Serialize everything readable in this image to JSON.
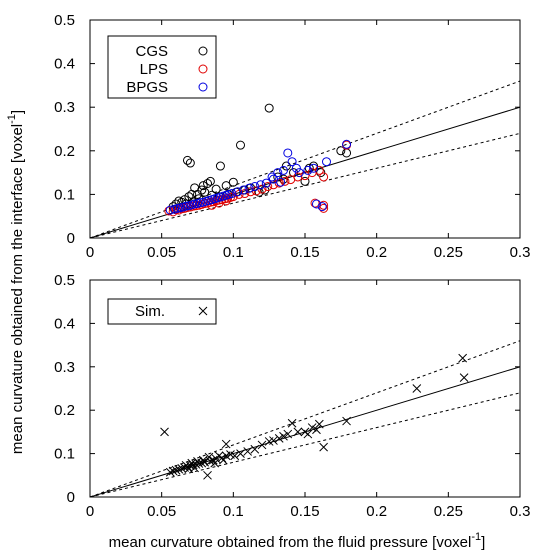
{
  "figure": {
    "ylabel": "mean curvature obtained from the interface [voxel",
    "ylabel_sup": "-1",
    "ylabel_end": "]",
    "xlabel": "mean curvature obtained from the fluid pressure [voxel",
    "xlabel_sup": "-1",
    "xlabel_end": "]"
  },
  "chart_data": [
    {
      "type": "scatter",
      "xlim": [
        0,
        0.3
      ],
      "ylim": [
        0,
        0.5
      ],
      "xticks": [
        "0",
        "0.05",
        "0.1",
        "0.15",
        "0.2",
        "0.25",
        "0.3"
      ],
      "yticks": [
        "0",
        "0.1",
        "0.2",
        "0.3",
        "0.4",
        "0.5"
      ],
      "legend_position": "top-left",
      "reference_lines": [
        {
          "style": "solid",
          "slope": 1.0
        },
        {
          "style": "dashed",
          "slope": 1.2
        },
        {
          "style": "dashed",
          "slope": 0.8
        }
      ],
      "series": [
        {
          "name": "CGS",
          "marker": "circle",
          "color": "#000000",
          "points": [
            [
              0.125,
              0.298
            ],
            [
              0.105,
              0.213
            ],
            [
              0.068,
              0.178
            ],
            [
              0.07,
              0.172
            ],
            [
              0.084,
              0.13
            ],
            [
              0.091,
              0.165
            ],
            [
              0.078,
              0.11
            ],
            [
              0.079,
              0.12
            ],
            [
              0.082,
              0.125
            ],
            [
              0.073,
              0.115
            ],
            [
              0.075,
              0.1
            ],
            [
              0.071,
              0.1
            ],
            [
              0.069,
              0.095
            ],
            [
              0.066,
              0.088
            ],
            [
              0.064,
              0.082
            ],
            [
              0.06,
              0.078
            ],
            [
              0.058,
              0.072
            ],
            [
              0.062,
              0.085
            ],
            [
              0.08,
              0.105
            ],
            [
              0.088,
              0.112
            ],
            [
              0.095,
              0.12
            ],
            [
              0.1,
              0.128
            ],
            [
              0.108,
              0.11
            ],
            [
              0.112,
              0.115
            ],
            [
              0.118,
              0.105
            ],
            [
              0.122,
              0.11
            ],
            [
              0.131,
              0.14
            ],
            [
              0.135,
              0.135
            ],
            [
              0.137,
              0.165
            ],
            [
              0.142,
              0.15
            ],
            [
              0.15,
              0.13
            ],
            [
              0.153,
              0.16
            ],
            [
              0.156,
              0.165
            ],
            [
              0.161,
              0.15
            ],
            [
              0.175,
              0.2
            ],
            [
              0.179,
              0.195
            ],
            [
              0.09,
              0.095
            ],
            [
              0.096,
              0.1
            ],
            [
              0.102,
              0.105
            ],
            [
              0.085,
              0.098
            ],
            [
              0.076,
              0.09
            ],
            [
              0.072,
              0.083
            ],
            [
              0.067,
              0.078
            ],
            [
              0.063,
              0.07
            ],
            [
              0.059,
              0.066
            ]
          ]
        },
        {
          "name": "LPS",
          "marker": "circle",
          "color": "#e00000",
          "points": [
            [
              0.055,
              0.062
            ],
            [
              0.058,
              0.06
            ],
            [
              0.06,
              0.065
            ],
            [
              0.062,
              0.064
            ],
            [
              0.064,
              0.067
            ],
            [
              0.066,
              0.068
            ],
            [
              0.068,
              0.07
            ],
            [
              0.07,
              0.071
            ],
            [
              0.072,
              0.073
            ],
            [
              0.074,
              0.074
            ],
            [
              0.076,
              0.075
            ],
            [
              0.078,
              0.077
            ],
            [
              0.08,
              0.079
            ],
            [
              0.082,
              0.08
            ],
            [
              0.084,
              0.082
            ],
            [
              0.086,
              0.083
            ],
            [
              0.088,
              0.085
            ],
            [
              0.09,
              0.087
            ],
            [
              0.092,
              0.088
            ],
            [
              0.094,
              0.09
            ],
            [
              0.096,
              0.091
            ],
            [
              0.098,
              0.093
            ],
            [
              0.1,
              0.095
            ],
            [
              0.104,
              0.1
            ],
            [
              0.108,
              0.102
            ],
            [
              0.112,
              0.106
            ],
            [
              0.116,
              0.108
            ],
            [
              0.12,
              0.112
            ],
            [
              0.124,
              0.118
            ],
            [
              0.128,
              0.122
            ],
            [
              0.132,
              0.126
            ],
            [
              0.136,
              0.13
            ],
            [
              0.14,
              0.134
            ],
            [
              0.145,
              0.14
            ],
            [
              0.15,
              0.143
            ],
            [
              0.155,
              0.15
            ],
            [
              0.16,
              0.155
            ],
            [
              0.163,
              0.14
            ],
            [
              0.157,
              0.08
            ],
            [
              0.163,
              0.075
            ],
            [
              0.163,
              0.068
            ],
            [
              0.179,
              0.213
            ],
            [
              0.09,
              0.08
            ],
            [
              0.095,
              0.085
            ],
            [
              0.085,
              0.075
            ]
          ]
        },
        {
          "name": "BPGS",
          "marker": "circle",
          "color": "#0000e0",
          "points": [
            [
              0.056,
              0.064
            ],
            [
              0.059,
              0.066
            ],
            [
              0.061,
              0.068
            ],
            [
              0.063,
              0.069
            ],
            [
              0.065,
              0.071
            ],
            [
              0.067,
              0.073
            ],
            [
              0.069,
              0.074
            ],
            [
              0.071,
              0.076
            ],
            [
              0.073,
              0.078
            ],
            [
              0.075,
              0.079
            ],
            [
              0.077,
              0.081
            ],
            [
              0.079,
              0.082
            ],
            [
              0.081,
              0.084
            ],
            [
              0.083,
              0.086
            ],
            [
              0.085,
              0.088
            ],
            [
              0.087,
              0.09
            ],
            [
              0.089,
              0.092
            ],
            [
              0.091,
              0.094
            ],
            [
              0.093,
              0.096
            ],
            [
              0.095,
              0.098
            ],
            [
              0.097,
              0.1
            ],
            [
              0.099,
              0.102
            ],
            [
              0.103,
              0.106
            ],
            [
              0.107,
              0.11
            ],
            [
              0.111,
              0.114
            ],
            [
              0.115,
              0.118
            ],
            [
              0.119,
              0.122
            ],
            [
              0.123,
              0.126
            ],
            [
              0.127,
              0.14
            ],
            [
              0.131,
              0.15
            ],
            [
              0.135,
              0.155
            ],
            [
              0.138,
              0.195
            ],
            [
              0.141,
              0.175
            ],
            [
              0.144,
              0.16
            ],
            [
              0.146,
              0.15
            ],
            [
              0.152,
              0.155
            ],
            [
              0.156,
              0.16
            ],
            [
              0.158,
              0.078
            ],
            [
              0.162,
              0.072
            ],
            [
              0.165,
              0.175
            ],
            [
              0.179,
              0.215
            ],
            [
              0.128,
              0.135
            ],
            [
              0.133,
              0.128
            ]
          ]
        }
      ]
    },
    {
      "type": "scatter",
      "xlim": [
        0,
        0.3
      ],
      "ylim": [
        0,
        0.5
      ],
      "xticks": [
        "0",
        "0.05",
        "0.1",
        "0.15",
        "0.2",
        "0.25",
        "0.3"
      ],
      "yticks": [
        "0",
        "0.1",
        "0.2",
        "0.3",
        "0.4",
        "0.5"
      ],
      "legend_position": "top-left",
      "reference_lines": [
        {
          "style": "solid",
          "slope": 1.0
        },
        {
          "style": "dashed",
          "slope": 1.2
        },
        {
          "style": "dashed",
          "slope": 0.8
        }
      ],
      "series": [
        {
          "name": "Sim.",
          "marker": "x",
          "color": "#000000",
          "points": [
            [
              0.052,
              0.15
            ],
            [
              0.095,
              0.122
            ],
            [
              0.26,
              0.32
            ],
            [
              0.228,
              0.25
            ],
            [
              0.261,
              0.275
            ],
            [
              0.163,
              0.115
            ],
            [
              0.179,
              0.175
            ],
            [
              0.16,
              0.168
            ],
            [
              0.158,
              0.155
            ],
            [
              0.155,
              0.16
            ],
            [
              0.152,
              0.145
            ],
            [
              0.15,
              0.15
            ],
            [
              0.145,
              0.15
            ],
            [
              0.141,
              0.17
            ],
            [
              0.138,
              0.145
            ],
            [
              0.135,
              0.14
            ],
            [
              0.132,
              0.135
            ],
            [
              0.128,
              0.13
            ],
            [
              0.125,
              0.128
            ],
            [
              0.12,
              0.12
            ],
            [
              0.115,
              0.11
            ],
            [
              0.11,
              0.105
            ],
            [
              0.105,
              0.1
            ],
            [
              0.101,
              0.095
            ],
            [
              0.098,
              0.098
            ],
            [
              0.095,
              0.095
            ],
            [
              0.092,
              0.09
            ],
            [
              0.09,
              0.095
            ],
            [
              0.088,
              0.088
            ],
            [
              0.086,
              0.085
            ],
            [
              0.084,
              0.082
            ],
            [
              0.082,
              0.05
            ],
            [
              0.08,
              0.08
            ],
            [
              0.078,
              0.078
            ],
            [
              0.076,
              0.077
            ],
            [
              0.074,
              0.075
            ],
            [
              0.072,
              0.074
            ],
            [
              0.07,
              0.072
            ],
            [
              0.068,
              0.07
            ],
            [
              0.066,
              0.068
            ],
            [
              0.064,
              0.066
            ],
            [
              0.062,
              0.064
            ],
            [
              0.06,
              0.062
            ],
            [
              0.058,
              0.06
            ],
            [
              0.056,
              0.057
            ],
            [
              0.083,
              0.092
            ],
            [
              0.079,
              0.085
            ],
            [
              0.075,
              0.082
            ],
            [
              0.071,
              0.078
            ],
            [
              0.067,
              0.073
            ],
            [
              0.087,
              0.078
            ],
            [
              0.093,
              0.085
            ],
            [
              0.073,
              0.067
            ],
            [
              0.069,
              0.065
            ]
          ]
        }
      ]
    }
  ]
}
